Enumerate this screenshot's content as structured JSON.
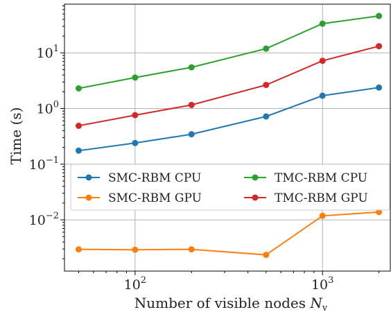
{
  "chart_data": {
    "type": "line",
    "title": "",
    "xlabel_main": "Number of visible nodes",
    "xlabel_symbol": "N",
    "xlabel_sub": "v",
    "ylabel": "Time (s)",
    "x_scale": "log",
    "y_scale": "log",
    "xlim": [
      42,
      2300
    ],
    "ylim": [
      0.0012,
      75
    ],
    "grid": true,
    "legend_location": "center-left",
    "x_ticks": [
      {
        "value": 100,
        "base": "10",
        "exp": "2"
      },
      {
        "value": 1000,
        "base": "10",
        "exp": "3"
      }
    ],
    "y_ticks": [
      {
        "value": 0.01,
        "base": "10",
        "exp": "−2"
      },
      {
        "value": 0.1,
        "base": "10",
        "exp": "−1"
      },
      {
        "value": 1,
        "base": "10",
        "exp": "0"
      },
      {
        "value": 10,
        "base": "10",
        "exp": "1"
      }
    ],
    "x": [
      50,
      100,
      200,
      500,
      1000,
      2000
    ],
    "series": [
      {
        "name": "SMC-RBM CPU",
        "color": "#1f77b4",
        "values": [
          0.175,
          0.24,
          0.345,
          0.72,
          1.7,
          2.38
        ]
      },
      {
        "name": "SMC-RBM GPU",
        "color": "#ff7f0e",
        "values": [
          0.00295,
          0.0029,
          0.00295,
          0.00235,
          0.0118,
          0.0138
        ]
      },
      {
        "name": "TMC-RBM CPU",
        "color": "#2ca02c",
        "values": [
          2.3,
          3.6,
          5.5,
          11.9,
          33.5,
          46
        ]
      },
      {
        "name": "TMC-RBM GPU",
        "color": "#d62728",
        "values": [
          0.49,
          0.76,
          1.16,
          2.65,
          7.2,
          13.2
        ]
      }
    ]
  }
}
